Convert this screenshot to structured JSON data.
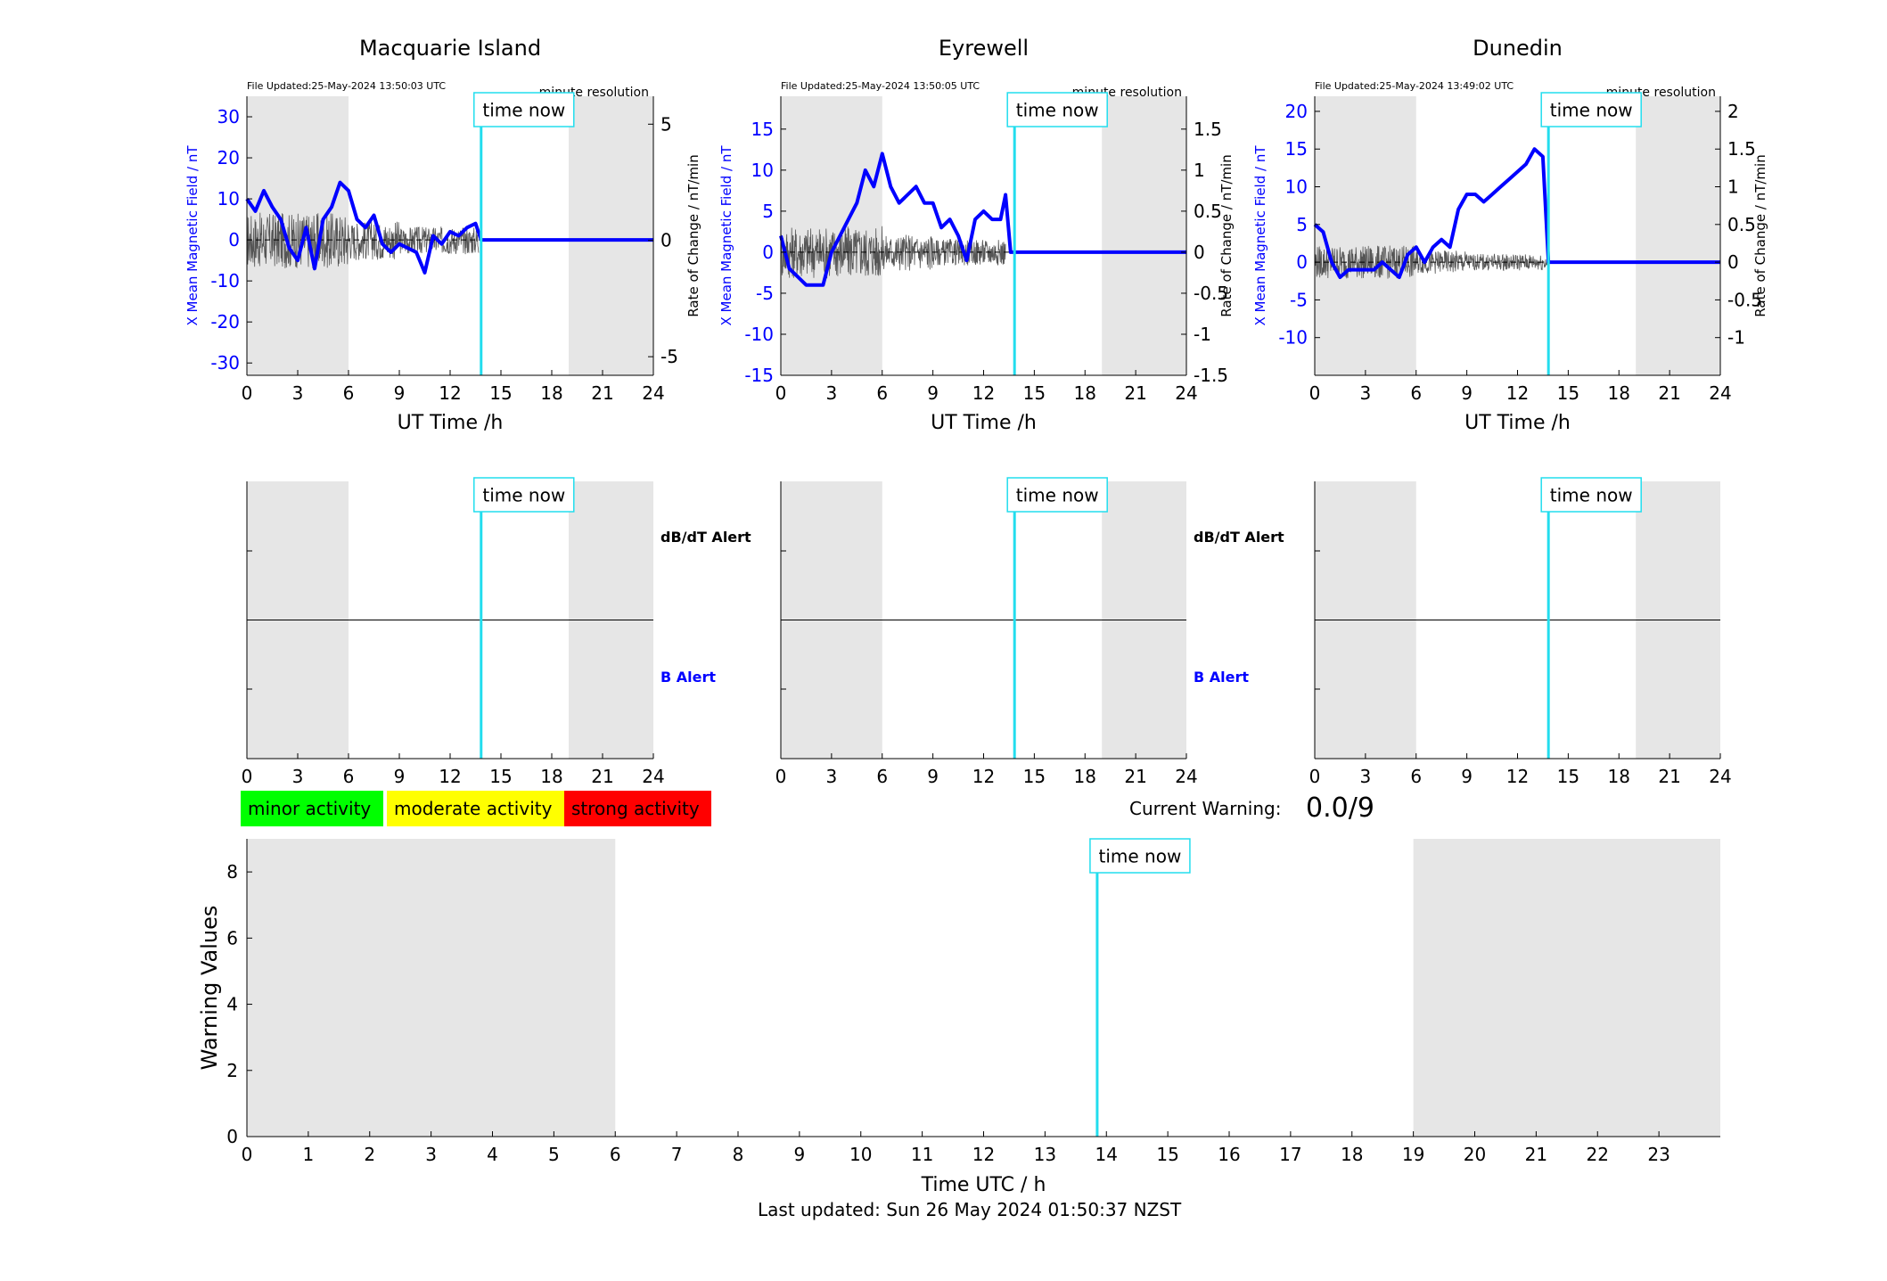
{
  "footer": {
    "last_updated": "Last updated: Sun 26 May 2024 01:50:37 NZST"
  },
  "common": {
    "time_now_label": "time now",
    "ut_xlabel": "UT Time /h",
    "resolution_label": "minute resolution",
    "db_alert_label": "dB/dT Alert",
    "b_alert_label": "B Alert",
    "left_ylabel": "X Mean Magnetic Field / nT",
    "right_ylabel": "Rate of Change / nT/min",
    "x_ticks": [
      0,
      3,
      6,
      9,
      12,
      15,
      18,
      21,
      24
    ],
    "now_hour": 13.83,
    "shade_ranges": [
      [
        0,
        6
      ],
      [
        19,
        24
      ]
    ]
  },
  "legend": {
    "minor": {
      "label": "minor activity",
      "color": "#00ff00"
    },
    "moderate": {
      "label": "moderate activity",
      "color": "#ffff00"
    },
    "strong": {
      "label": "strong activity",
      "color": "#ff0000"
    }
  },
  "current_warning": {
    "label": "Current Warning:",
    "value": "0.0/9"
  },
  "colors": {
    "field": "#0000ff",
    "rate": "#555555",
    "now": "#22ddee",
    "shade": "#e6e6e6"
  },
  "chart_data": [
    {
      "type": "line",
      "title": "Macquarie Island",
      "file_updated": "File Updated:25-May-2024 13:50:03 UTC",
      "xlim": [
        0,
        24
      ],
      "ylim": [
        -33,
        35
      ],
      "yticks": [
        30,
        20,
        10,
        0,
        -10,
        -20,
        -30
      ],
      "y2lim": [
        -5.8,
        6.2
      ],
      "y2ticks": [
        5,
        0,
        -5
      ],
      "field_x": [
        0,
        0.5,
        1,
        1.5,
        2,
        2.5,
        3,
        3.5,
        4,
        4.5,
        5,
        5.5,
        6,
        6.5,
        7,
        7.5,
        8,
        8.5,
        9,
        9.5,
        10,
        10.5,
        11,
        11.5,
        12,
        12.5,
        13,
        13.5,
        13.83,
        24
      ],
      "field_y": [
        10,
        7,
        12,
        8,
        5,
        -2,
        -5,
        3,
        -7,
        5,
        8,
        14,
        12,
        5,
        3,
        6,
        -1,
        -3,
        -1,
        -2,
        -3,
        -8,
        1,
        -1,
        2,
        1,
        3,
        4,
        0,
        0
      ],
      "rate_amp": 1.2,
      "rate_end": 13.7
    },
    {
      "type": "line",
      "title": "Eyrewell",
      "file_updated": "File Updated:25-May-2024 13:50:05 UTC",
      "xlim": [
        0,
        24
      ],
      "ylim": [
        -15,
        19
      ],
      "yticks": [
        15,
        10,
        5,
        0,
        -5,
        -10,
        -15
      ],
      "y2lim": [
        -1.5,
        1.9
      ],
      "y2ticks": [
        1.5,
        1,
        0.5,
        0,
        -0.5,
        -1,
        -1.5
      ],
      "field_x": [
        0,
        0.5,
        1,
        1.5,
        2,
        2.5,
        3,
        3.5,
        4,
        4.5,
        5,
        5.5,
        6,
        6.5,
        7,
        7.5,
        8,
        8.5,
        9,
        9.5,
        10,
        10.5,
        11,
        11.5,
        12,
        12.5,
        13,
        13.3,
        13.6,
        24
      ],
      "field_y": [
        2,
        -2,
        -3,
        -4,
        -4,
        -4,
        0,
        2,
        4,
        6,
        10,
        8,
        12,
        8,
        6,
        7,
        8,
        6,
        6,
        3,
        4,
        2,
        -1,
        4,
        5,
        4,
        4,
        7,
        0,
        0
      ],
      "rate_amp": 0.32,
      "rate_end": 13.3
    },
    {
      "type": "line",
      "title": "Dunedin",
      "file_updated": "File Updated:25-May-2024 13:49:02 UTC",
      "xlim": [
        0,
        24
      ],
      "ylim": [
        -15,
        22
      ],
      "yticks": [
        20,
        15,
        10,
        5,
        0,
        -5,
        -10
      ],
      "y2lim": [
        -1.5,
        2.2
      ],
      "y2ticks": [
        2,
        1.5,
        1,
        0.5,
        0,
        -0.5,
        -1
      ],
      "field_x": [
        0,
        0.5,
        1,
        1.5,
        2,
        2.5,
        3,
        3.5,
        4,
        4.5,
        5,
        5.5,
        6,
        6.5,
        7,
        7.5,
        8,
        8.5,
        9,
        9.5,
        10,
        10.5,
        11,
        11.5,
        12,
        12.5,
        13,
        13.5,
        13.83,
        24
      ],
      "field_y": [
        5,
        4,
        0,
        -2,
        -1,
        -1,
        -1,
        -1,
        0,
        -1,
        -2,
        1,
        2,
        0,
        2,
        3,
        2,
        7,
        9,
        9,
        8,
        9,
        10,
        11,
        12,
        13,
        15,
        14,
        0,
        0
      ],
      "rate_amp": 0.22,
      "rate_end": 13.8
    },
    {
      "type": "line",
      "title": "",
      "xlabel": "Time UTC / h",
      "ylabel": "Warning Values",
      "xlim": [
        0,
        24
      ],
      "ylim": [
        0,
        9
      ],
      "xticks": [
        0,
        1,
        2,
        3,
        4,
        5,
        6,
        7,
        8,
        9,
        10,
        11,
        12,
        13,
        14,
        15,
        16,
        17,
        18,
        19,
        20,
        21,
        22,
        23
      ],
      "yticks": [
        0,
        2,
        4,
        6,
        8
      ],
      "now_hour": 13.85
    }
  ]
}
